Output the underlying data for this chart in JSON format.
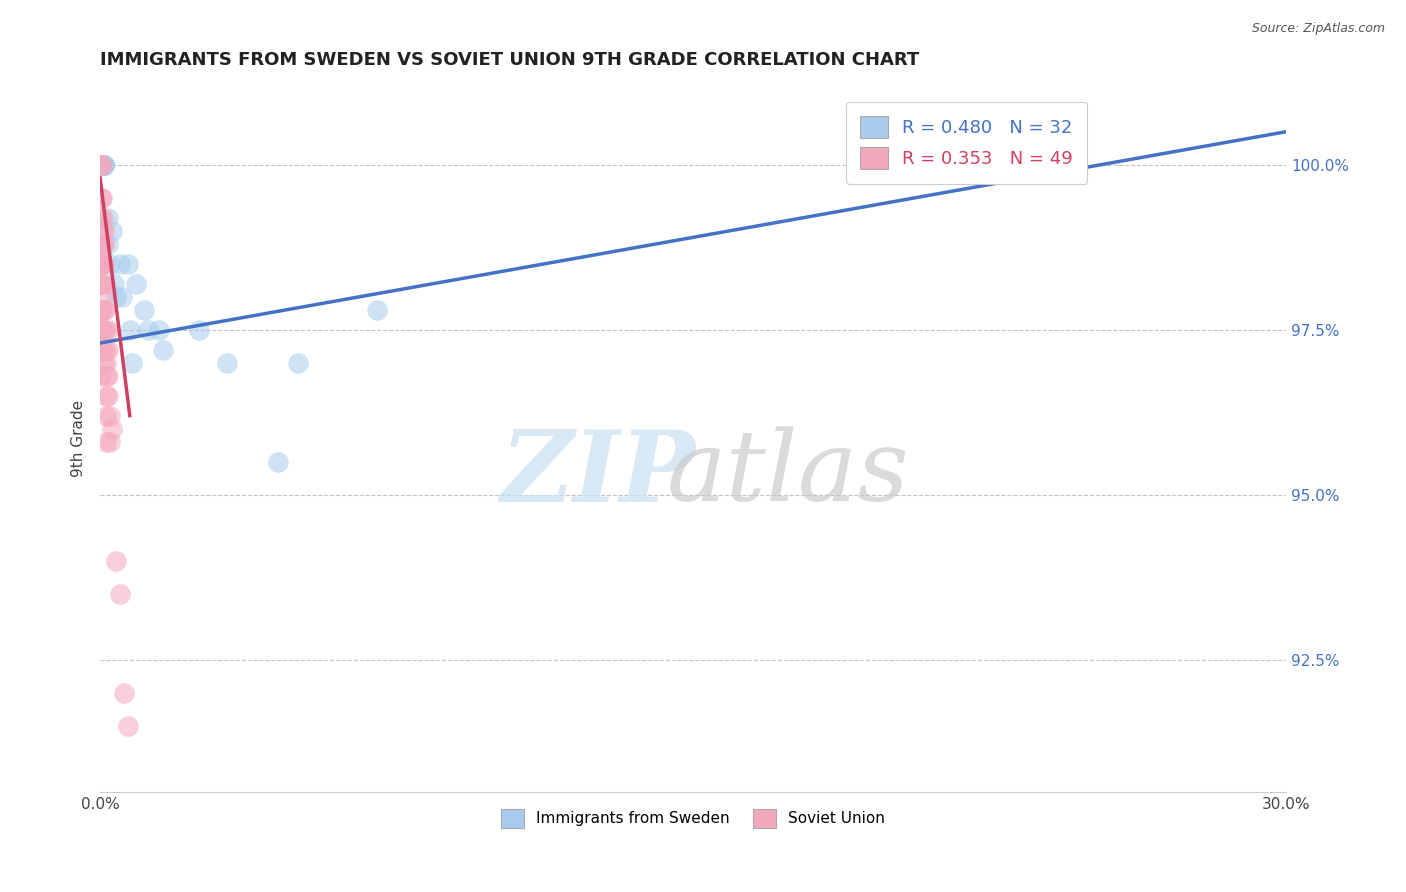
{
  "title": "IMMIGRANTS FROM SWEDEN VS SOVIET UNION 9TH GRADE CORRELATION CHART",
  "source": "Source: ZipAtlas.com",
  "ylabel": "9th Grade",
  "y_ticks": [
    92.5,
    95.0,
    97.5,
    100.0
  ],
  "y_tick_labels": [
    "92.5%",
    "95.0%",
    "97.5%",
    "100.0%"
  ],
  "xlim": [
    0.0,
    30.0
  ],
  "ylim": [
    90.5,
    101.2
  ],
  "sweden_color": "#A8CCEE",
  "soviet_color": "#F4A8BC",
  "sweden_line_color": "#4472C4",
  "soviet_line_color": "#D04060",
  "legend_sweden": "Immigrants from Sweden",
  "legend_soviet": "Soviet Union",
  "R_sweden": 0.48,
  "N_sweden": 32,
  "R_soviet": 0.353,
  "N_soviet": 49,
  "sweden_x": [
    0.05,
    0.05,
    0.05,
    0.05,
    0.05,
    0.05,
    0.1,
    0.1,
    0.1,
    0.1,
    0.2,
    0.2,
    0.25,
    0.3,
    0.35,
    0.4,
    0.5,
    0.55,
    0.7,
    0.75,
    0.8,
    0.9,
    1.1,
    1.2,
    1.5,
    1.6,
    2.5,
    3.2,
    4.5,
    5.0,
    7.0,
    23.0
  ],
  "sweden_y": [
    100.0,
    100.0,
    100.0,
    100.0,
    100.0,
    100.0,
    100.0,
    100.0,
    100.0,
    100.0,
    99.2,
    98.8,
    98.5,
    99.0,
    98.2,
    98.0,
    98.5,
    98.0,
    98.5,
    97.5,
    97.0,
    98.2,
    97.8,
    97.5,
    97.5,
    97.2,
    97.5,
    97.0,
    95.5,
    97.0,
    97.8,
    100.0
  ],
  "soviet_x": [
    0.02,
    0.02,
    0.02,
    0.02,
    0.02,
    0.02,
    0.02,
    0.02,
    0.02,
    0.02,
    0.02,
    0.02,
    0.05,
    0.05,
    0.05,
    0.05,
    0.05,
    0.05,
    0.08,
    0.08,
    0.08,
    0.08,
    0.1,
    0.1,
    0.1,
    0.1,
    0.1,
    0.1,
    0.1,
    0.1,
    0.12,
    0.12,
    0.15,
    0.15,
    0.15,
    0.15,
    0.15,
    0.15,
    0.2,
    0.2,
    0.2,
    0.2,
    0.25,
    0.25,
    0.3,
    0.4,
    0.5,
    0.6,
    0.7
  ],
  "soviet_y": [
    100.0,
    100.0,
    100.0,
    99.5,
    99.2,
    98.8,
    98.5,
    98.2,
    97.8,
    97.5,
    97.2,
    96.8,
    99.5,
    99.0,
    98.5,
    98.2,
    97.8,
    97.5,
    99.2,
    98.8,
    98.5,
    98.0,
    99.0,
    98.8,
    98.5,
    98.2,
    97.8,
    97.5,
    97.2,
    97.0,
    97.8,
    97.5,
    97.2,
    97.0,
    96.8,
    96.5,
    96.2,
    95.8,
    97.5,
    97.2,
    96.8,
    96.5,
    96.2,
    95.8,
    96.0,
    94.0,
    93.5,
    92.0,
    91.5
  ],
  "trend_blue_x0": 0.0,
  "trend_blue_y0": 97.3,
  "trend_blue_x1": 30.0,
  "trend_blue_y1": 100.5,
  "trend_pink_x0": 0.0,
  "trend_pink_y0": 99.8,
  "trend_pink_x1": 0.75,
  "trend_pink_y1": 96.2
}
